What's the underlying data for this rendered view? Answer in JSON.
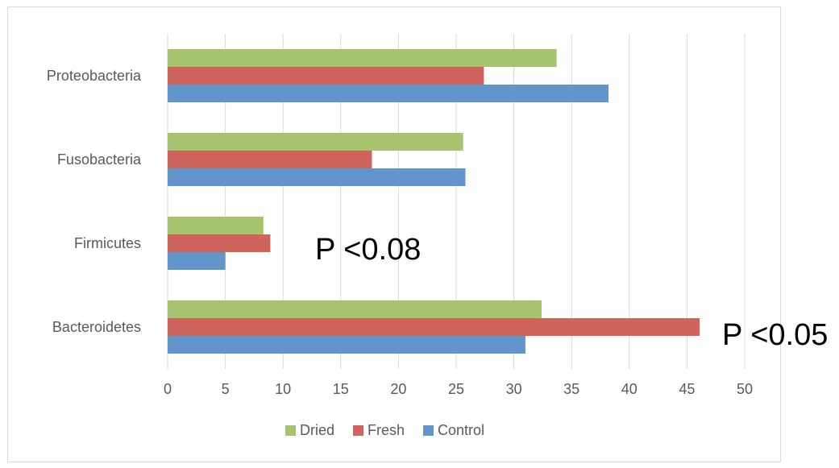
{
  "chart_data": {
    "type": "bar",
    "orientation": "horizontal",
    "categories": [
      "Bacteroidetes",
      "Firmicutes",
      "Fusobacteria",
      "Proteobacteria"
    ],
    "series": [
      {
        "name": "Control",
        "color": "#6096cb",
        "values": [
          31.0,
          5.0,
          25.8,
          38.2
        ]
      },
      {
        "name": "Fresh",
        "color": "#cf645d",
        "values": [
          46.1,
          8.9,
          17.7,
          27.4
        ]
      },
      {
        "name": "Dried",
        "color": "#a6c46e",
        "values": [
          32.4,
          8.3,
          25.6,
          33.7
        ]
      }
    ],
    "xlim": [
      0,
      50
    ],
    "x_ticks": [
      "0",
      "5",
      "10",
      "15",
      "20",
      "25",
      "30",
      "35",
      "40",
      "45",
      "50"
    ],
    "grid": "vertical",
    "legend_position": "bottom",
    "legend_order": [
      "Dried",
      "Fresh",
      "Control"
    ],
    "annotations": [
      {
        "text": "P <0.08",
        "category": "Firmicutes"
      },
      {
        "text": "P <0.05",
        "category": "Bacteroidetes"
      }
    ],
    "title": "",
    "xlabel": "",
    "ylabel": ""
  },
  "colors": {
    "gridline": "#d9d9d9",
    "axis_text": "#595959",
    "frame": "#d9d9d9"
  }
}
